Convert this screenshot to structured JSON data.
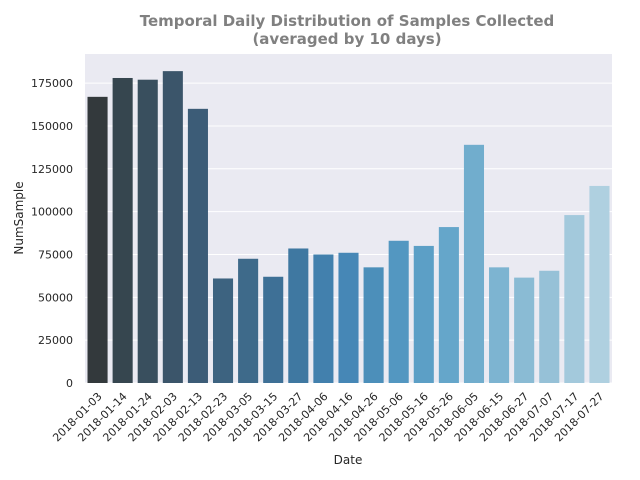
{
  "chart_data": {
    "type": "bar",
    "title_lines": [
      "Temporal Daily Distribution of Samples Collected",
      "(averaged by 10 days)"
    ],
    "xlabel": "Date",
    "ylabel": "NumSample",
    "ylim": [
      0,
      192000
    ],
    "yticks": [
      0,
      25000,
      50000,
      75000,
      100000,
      125000,
      150000,
      175000
    ],
    "grid": true,
    "categories": [
      "2018-01-03",
      "2018-01-14",
      "2018-01-24",
      "2018-02-03",
      "2018-02-13",
      "2018-02-23",
      "2018-03-05",
      "2018-03-15",
      "2018-03-27",
      "2018-04-06",
      "2018-04-16",
      "2018-04-26",
      "2018-05-06",
      "2018-05-16",
      "2018-05-26",
      "2018-06-05",
      "2018-06-15",
      "2018-06-27",
      "2018-07-07",
      "2018-07-17",
      "2018-07-27"
    ],
    "values": [
      167000,
      178000,
      177000,
      182000,
      160000,
      61000,
      72500,
      62000,
      78500,
      75000,
      76000,
      67500,
      83000,
      80000,
      91000,
      139000,
      67500,
      61500,
      65500,
      98000,
      115000
    ],
    "colors": [
      "#33393c",
      "#36464f",
      "#394f5e",
      "#3b556a",
      "#3c5c77",
      "#3d6380",
      "#3e6a8a",
      "#3e7096",
      "#3f78a1",
      "#4280ad",
      "#4687b6",
      "#4c8fba",
      "#5397c1",
      "#5c9fc6",
      "#65a6ca",
      "#71adcd",
      "#7db4d1",
      "#8abbd4",
      "#96c1d7",
      "#a3c9dc",
      "#afd0e0"
    ],
    "background": "#eaeaf2"
  }
}
